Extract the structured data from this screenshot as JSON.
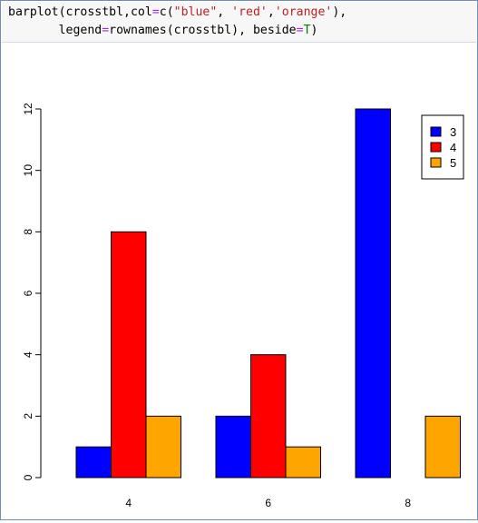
{
  "notebook_cell": {
    "code": {
      "fn": "barplot",
      "p1": "(crosstbl,col",
      "eq1": "=",
      "p2": "c(",
      "s1": "\"blue\"",
      "c1": ", ",
      "s2": "'red'",
      "c2": ",",
      "s3": "'orange'",
      "p3": "),",
      "indent": "       ",
      "l2a": "legend",
      "eq2": "=",
      "l2b": "rownames(crosstbl), beside",
      "eq3": "=",
      "l2c": "T",
      "l2d": ")"
    }
  },
  "chart_data": {
    "type": "bar",
    "grouped": true,
    "categories": [
      "4",
      "6",
      "8"
    ],
    "series": [
      {
        "name": "3",
        "color": "#0000ff",
        "values": [
          1,
          2,
          12
        ]
      },
      {
        "name": "4",
        "color": "#ff0000",
        "values": [
          8,
          4,
          0
        ]
      },
      {
        "name": "5",
        "color": "#ffa500",
        "values": [
          2,
          1,
          2
        ]
      }
    ],
    "yticks": [
      "0",
      "2",
      "4",
      "6",
      "8",
      "10",
      "12"
    ],
    "ylim": [
      0,
      12
    ],
    "legend_position": "top-right",
    "grid": false
  }
}
